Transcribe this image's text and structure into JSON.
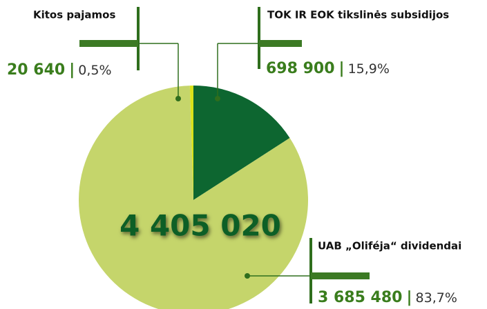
{
  "chart_data": {
    "type": "pie",
    "total": 4405020,
    "total_label": "4 405 020",
    "categories": [
      "TOK IR EOK tikslinės subsidijos",
      "UAB „Oliféja“ dividendai",
      "Kitos pajamos"
    ],
    "values": [
      15.9,
      83.7,
      0.5
    ],
    "value_labels": [
      "15,9%",
      "83,7%",
      "0,5%"
    ],
    "amounts": [
      698900,
      3685480,
      20640
    ],
    "amount_labels": [
      "698 900",
      "3 685 480",
      "20 640"
    ],
    "colors": [
      "#0d6630",
      "#c5d56b",
      "#d9e21a"
    ]
  }
}
